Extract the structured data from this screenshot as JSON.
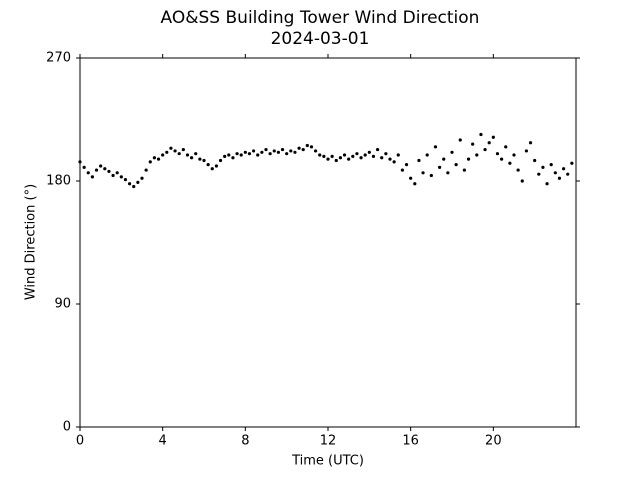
{
  "chart_data": {
    "type": "scatter",
    "title": "AO&SS Building Tower Wind Direction",
    "subtitle": "2024-03-01",
    "x_label": "Time (UTC)",
    "y_label": "Wind Direction (°)",
    "color": "#000000",
    "xlim": [
      0,
      24
    ],
    "xticks": [
      0,
      4,
      8,
      12,
      16,
      20
    ],
    "ylim": [
      0,
      270
    ],
    "yticks": [
      0,
      90,
      180,
      270
    ],
    "x": [
      0.0,
      0.2,
      0.4,
      0.6,
      0.8,
      1.0,
      1.2,
      1.4,
      1.6,
      1.8,
      2.0,
      2.2,
      2.4,
      2.6,
      2.8,
      3.0,
      3.2,
      3.4,
      3.6,
      3.8,
      4.0,
      4.2,
      4.4,
      4.6,
      4.8,
      5.0,
      5.2,
      5.4,
      5.6,
      5.8,
      6.0,
      6.2,
      6.4,
      6.6,
      6.8,
      7.0,
      7.2,
      7.4,
      7.6,
      7.8,
      8.0,
      8.2,
      8.4,
      8.6,
      8.8,
      9.0,
      9.2,
      9.4,
      9.6,
      9.8,
      10.0,
      10.2,
      10.4,
      10.6,
      10.8,
      11.0,
      11.2,
      11.4,
      11.6,
      11.8,
      12.0,
      12.2,
      12.4,
      12.6,
      12.8,
      13.0,
      13.2,
      13.4,
      13.6,
      13.8,
      14.0,
      14.2,
      14.4,
      14.6,
      14.8,
      15.0,
      15.2,
      15.4,
      15.6,
      15.8,
      16.0,
      16.2,
      16.4,
      16.6,
      16.8,
      17.0,
      17.2,
      17.4,
      17.6,
      17.8,
      18.0,
      18.2,
      18.4,
      18.6,
      18.8,
      19.0,
      19.2,
      19.4,
      19.6,
      19.8,
      20.0,
      20.2,
      20.4,
      20.6,
      20.8,
      21.0,
      21.2,
      21.4,
      21.6,
      21.8,
      22.0,
      22.2,
      22.4,
      22.6,
      22.8,
      23.0,
      23.2,
      23.4,
      23.6,
      23.8
    ],
    "values": [
      194,
      190,
      186,
      183,
      188,
      191,
      189,
      187,
      184,
      186,
      183,
      181,
      178,
      176,
      179,
      182,
      188,
      194,
      197,
      196,
      199,
      201,
      204,
      202,
      200,
      203,
      199,
      197,
      200,
      196,
      195,
      192,
      189,
      191,
      195,
      198,
      199,
      197,
      200,
      199,
      201,
      200,
      202,
      199,
      201,
      203,
      200,
      202,
      201,
      203,
      200,
      202,
      201,
      204,
      203,
      206,
      205,
      202,
      199,
      198,
      196,
      198,
      195,
      197,
      199,
      196,
      198,
      200,
      197,
      199,
      201,
      198,
      203,
      197,
      200,
      196,
      194,
      199,
      188,
      192,
      182,
      178,
      195,
      186,
      199,
      184,
      205,
      190,
      196,
      186,
      201,
      192,
      210,
      188,
      196,
      207,
      199,
      214,
      203,
      208,
      212,
      200,
      196,
      205,
      193,
      199,
      188,
      180,
      202,
      208,
      195,
      185,
      190,
      178,
      192,
      186,
      182,
      189,
      185,
      193
    ]
  }
}
